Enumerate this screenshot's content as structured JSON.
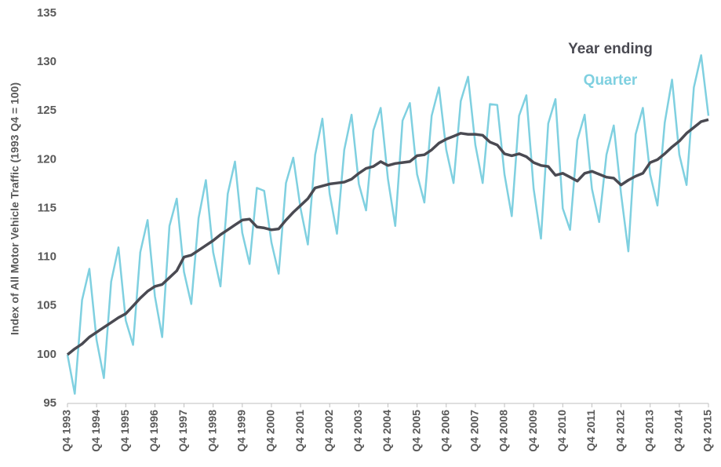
{
  "chart_data": {
    "type": "line",
    "y_label": "Index of All Motor Vehicle Traffic (1993 Q4 = 100)",
    "categories": [
      "Q4 1993",
      null,
      null,
      null,
      "Q4 1994",
      null,
      null,
      null,
      "Q4 1995",
      null,
      null,
      null,
      "Q4 1996",
      null,
      null,
      null,
      "Q4 1997",
      null,
      null,
      null,
      "Q4 1998",
      null,
      null,
      null,
      "Q4 1999",
      null,
      null,
      null,
      "Q4 2000",
      null,
      null,
      null,
      "Q4 2001",
      null,
      null,
      null,
      "Q4 2002",
      null,
      null,
      null,
      "Q4 2003",
      null,
      null,
      null,
      "Q4 2004",
      null,
      null,
      null,
      "Q4 2005",
      null,
      null,
      null,
      "Q4 2006",
      null,
      null,
      null,
      "Q4 2007",
      null,
      null,
      null,
      "Q4 2008",
      null,
      null,
      null,
      "Q4 2009",
      null,
      null,
      null,
      "Q4 2010",
      null,
      null,
      null,
      "Q4 2011",
      null,
      null,
      null,
      "Q4 2012",
      null,
      null,
      null,
      "Q4 2013",
      null,
      null,
      null,
      "Q4 2014",
      null,
      null,
      null,
      "Q4 2015"
    ],
    "series": [
      {
        "name": "Year ending",
        "color": "#4a4a52",
        "width": 3.5,
        "values": [
          100,
          100.6,
          101.1,
          101.8,
          102.3,
          102.8,
          103.3,
          103.8,
          104.2,
          105.0,
          105.8,
          106.5,
          107.0,
          107.2,
          107.9,
          108.6,
          110.0,
          110.2,
          110.7,
          111.2,
          111.7,
          112.3,
          112.8,
          113.3,
          113.8,
          113.9,
          113.1,
          113.0,
          112.8,
          112.9,
          113.8,
          114.6,
          115.3,
          116.0,
          117.1,
          117.3,
          117.5,
          117.6,
          117.7,
          118.0,
          118.6,
          119.1,
          119.3,
          119.8,
          119.4,
          119.6,
          119.7,
          119.8,
          120.4,
          120.5,
          121.0,
          121.7,
          122.1,
          122.4,
          122.7,
          122.6,
          122.6,
          122.5,
          121.8,
          121.5,
          120.6,
          120.4,
          120.6,
          120.3,
          119.7,
          119.4,
          119.3,
          118.4,
          118.6,
          118.2,
          117.8,
          118.6,
          118.8,
          118.5,
          118.2,
          118.1,
          117.4,
          117.9,
          118.3,
          118.6,
          119.7,
          120.0,
          120.6,
          121.3,
          121.9,
          122.7,
          123.3,
          123.9,
          124.1
        ]
      },
      {
        "name": "Quarter",
        "color": "#7fd0e0",
        "width": 2.5,
        "values": [
          100,
          96,
          105.6,
          108.8,
          101.5,
          97.6,
          107.5,
          111,
          103.5,
          101,
          110.5,
          113.8,
          106,
          101.8,
          113.2,
          116,
          108.5,
          105.2,
          114,
          117.9,
          110.5,
          107,
          116.5,
          119.8,
          112.5,
          109.3,
          117.1,
          116.8,
          111.5,
          108.3,
          117.6,
          120.2,
          115,
          111.3,
          120.5,
          124.2,
          116.5,
          112.4,
          121,
          124.6,
          117.5,
          114.8,
          123,
          125.3,
          118,
          113.2,
          124,
          125.8,
          118.5,
          115.6,
          124.5,
          127.4,
          121,
          117.6,
          126,
          128.5,
          121.5,
          117.6,
          125.7,
          125.6,
          118.5,
          114.2,
          124.5,
          126.6,
          117,
          111.9,
          123.7,
          126.2,
          115,
          112.8,
          122,
          124.6,
          117,
          113.6,
          120.5,
          123.5,
          116.5,
          110.6,
          122.6,
          125.3,
          118.5,
          115.3,
          123.8,
          128.2,
          120.5,
          117.4,
          127.4,
          130.7,
          124.5
        ]
      }
    ],
    "ylim": [
      95,
      135
    ],
    "yticks": [
      95,
      100,
      105,
      110,
      115,
      120,
      125,
      130,
      135
    ],
    "grid": false,
    "legend": "top-right"
  }
}
